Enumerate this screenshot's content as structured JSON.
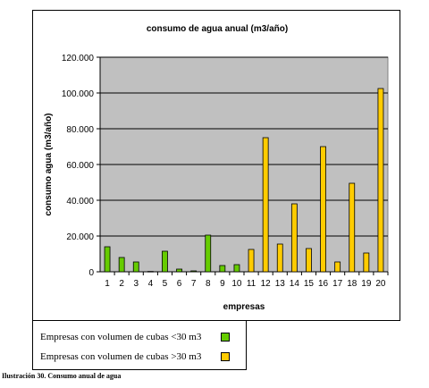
{
  "caption": "Ilustración 30. Consumo anual de agua",
  "chart_data": {
    "type": "bar",
    "title": "consumo de agua anual (m3/año)",
    "xlabel": "empresas",
    "ylabel": "consumo agua (m3/año)",
    "ylim": [
      0,
      120000
    ],
    "yticks": [
      "0",
      "20.000",
      "40.000",
      "60.000",
      "80.000",
      "100.000",
      "120.000"
    ],
    "grid": true,
    "legend_position": "bottom-left",
    "categories": [
      "1",
      "2",
      "3",
      "4",
      "5",
      "6",
      "7",
      "8",
      "9",
      "10",
      "11",
      "12",
      "13",
      "14",
      "15",
      "16",
      "17",
      "18",
      "19",
      "20"
    ],
    "values": [
      14000,
      8000,
      5500,
      200,
      11500,
      1500,
      500,
      20500,
      3500,
      4000,
      12500,
      75000,
      15500,
      38000,
      13000,
      70000,
      5500,
      49500,
      10500,
      102500
    ],
    "groups": [
      "lt30",
      "lt30",
      "lt30",
      "lt30",
      "lt30",
      "lt30",
      "lt30",
      "lt30",
      "lt30",
      "lt30",
      "gt30",
      "gt30",
      "gt30",
      "gt30",
      "gt30",
      "gt30",
      "gt30",
      "gt30",
      "gt30",
      "gt30"
    ],
    "series": [
      {
        "key": "lt30",
        "name": "Empresas con volumen de cubas <30 m3",
        "color": "#66cc00"
      },
      {
        "key": "gt30",
        "name": "Empresas con volumen de cubas >30 m3",
        "color": "#ffcc00"
      }
    ],
    "plot_bg": "#c0c0c0"
  }
}
